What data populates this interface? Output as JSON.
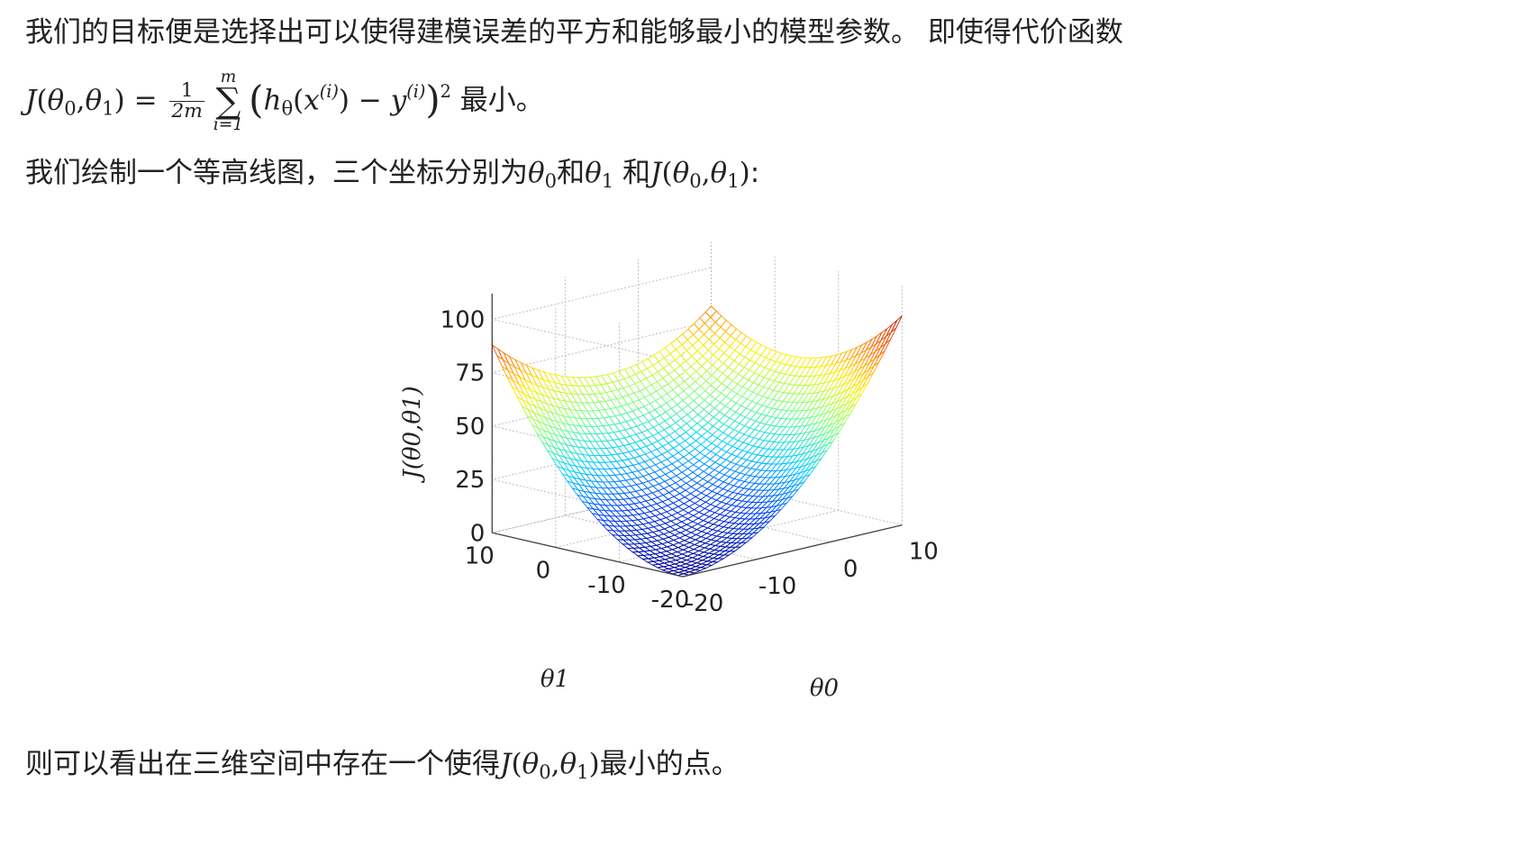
{
  "intro": {
    "text": "我们的目标便是选择出可以使得建模误差的平方和能够最小的模型参数。 即使得代价函数",
    "formula": {
      "J": "J",
      "open": "(",
      "theta": "θ",
      "sub0": "0",
      "comma": ",",
      "sub1": "1",
      "close": ")",
      "equals": "=",
      "frac_num": "1",
      "frac_den": "2m",
      "sum_top": "m",
      "sum_symbol": "∑",
      "sum_bottom": "i=1",
      "h": "h",
      "h_sub": "θ",
      "x": "x",
      "sup_i": "(i)",
      "minus": "−",
      "y": "y",
      "sq": "2"
    },
    "suffix": "最小。"
  },
  "contour_sentence": {
    "text": "我们绘制一个等高线图，三个坐标分别为",
    "and1": "和",
    "and2": " 和",
    "colon": ":"
  },
  "conclusion": {
    "pre": "则可以看出在三维空间中存在一个使得",
    "post": "最小的点。"
  },
  "chart_data": {
    "type": "surface",
    "title": "",
    "z_label": "J(θ0,θ1)",
    "x_label": "θ0",
    "y_label": "θ1",
    "z_ticks": [
      "0",
      "25",
      "50",
      "75",
      "100"
    ],
    "theta0_ticks": [
      "-20",
      "-10",
      "0",
      "10"
    ],
    "theta1_ticks": [
      "10",
      "0",
      "-10",
      "-20"
    ],
    "zlim": [
      0,
      100
    ],
    "theta0_range": [
      -20,
      10
    ],
    "theta1_range": [
      -20,
      10
    ],
    "colormap": "jet",
    "colors": [
      "#00008f",
      "#0040ff",
      "#00d0ff",
      "#7fff7f",
      "#ffee00",
      "#ff6000",
      "#a00000"
    ],
    "grid": true
  }
}
